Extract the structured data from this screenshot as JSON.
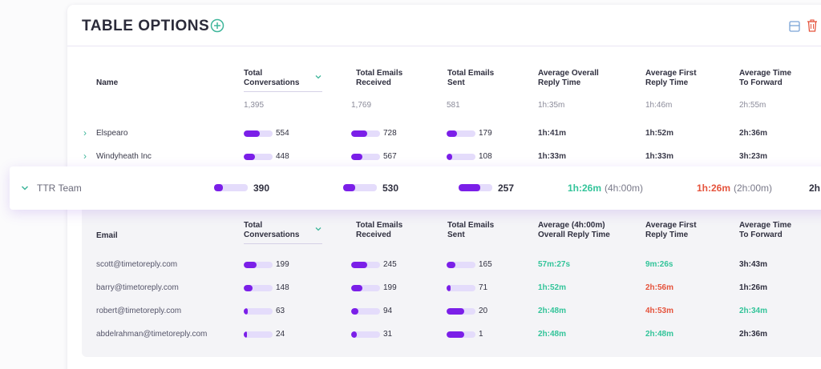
{
  "header": {
    "title": "TABLE OPTIONS",
    "add_icon": "plus-circle-icon",
    "save_icon": "save-icon",
    "delete_icon": "trash-icon"
  },
  "colors": {
    "accent": "#7b1fe8",
    "bar_bg": "#e4dcfb",
    "green": "#33c49a",
    "red": "#e5533c"
  },
  "table": {
    "columns": [
      "Name",
      "Total Conversations",
      "Total Emails Received",
      "Total Emails Sent",
      "Average Overall Reply Time",
      "Average First Reply Time",
      "Average Time To Forward"
    ],
    "col_lines": [
      [
        "Name"
      ],
      [
        "Total",
        "Conversations"
      ],
      [
        "Total Emails",
        "Received"
      ],
      [
        "Total Emails",
        "Sent"
      ],
      [
        "Average Overall",
        "Reply Time"
      ],
      [
        "Average First",
        "Reply Time"
      ],
      [
        "Average Time",
        "To Forward"
      ]
    ],
    "totals": [
      "1,395",
      "1,769",
      "581",
      "1h:35m",
      "1h:46m",
      "2h:55m"
    ],
    "rows": [
      {
        "name": "Elspearo",
        "conv": "554",
        "conv_pct": 0.55,
        "recv": "728",
        "recv_pct": 0.55,
        "sent": "179",
        "sent_pct": 0.35,
        "reply": "1h:41m",
        "first": "1h:52m",
        "fwd": "2h:36m"
      },
      {
        "name": "Windyheath Inc",
        "conv": "448",
        "conv_pct": 0.4,
        "recv": "567",
        "recv_pct": 0.4,
        "sent": "108",
        "sent_pct": 0.2,
        "reply": "1h:33m",
        "first": "1h:33m",
        "fwd": "3h:23m"
      }
    ],
    "team": {
      "name": "TTR Team",
      "conv": "390",
      "conv_pct": 0.25,
      "recv": "530",
      "recv_pct": 0.35,
      "sent": "257",
      "sent_pct": 0.65,
      "reply": "1h:26m",
      "reply_target": "(4h:00m)",
      "first": "1h:26m",
      "first_target": "(2h:00m)",
      "fwd": "2h"
    }
  },
  "subtable": {
    "col_lines": [
      [
        "Email"
      ],
      [
        "Total",
        "Conversations"
      ],
      [
        "Total Emails",
        "Received"
      ],
      [
        "Total Emails",
        "Sent"
      ],
      [
        "Average (4h:00m)",
        "Overall Reply Time"
      ],
      [
        "Average First",
        "Reply Time"
      ],
      [
        "Average Time",
        "To Forward"
      ]
    ],
    "rows": [
      {
        "email": "scott@timetoreply.com",
        "conv": "199",
        "conv_pct": 0.45,
        "recv": "245",
        "recv_pct": 0.55,
        "sent": "165",
        "sent_pct": 0.3,
        "reply": "57m:27s",
        "reply_c": "green",
        "first": "9m:26s",
        "first_c": "green",
        "fwd": "3h:43m",
        "fwd_c": "dark"
      },
      {
        "email": "barry@timetoreply.com",
        "conv": "148",
        "conv_pct": 0.3,
        "recv": "199",
        "recv_pct": 0.4,
        "sent": "71",
        "sent_pct": 0.15,
        "reply": "1h:52m",
        "reply_c": "green",
        "first": "2h:56m",
        "first_c": "red",
        "fwd": "1h:26m",
        "fwd_c": "dark"
      },
      {
        "email": "robert@timetoreply.com",
        "conv": "63",
        "conv_pct": 0.15,
        "recv": "94",
        "recv_pct": 0.25,
        "sent": "20",
        "sent_pct": 0.6,
        "reply": "2h:48m",
        "reply_c": "green",
        "first": "4h:53m",
        "first_c": "red",
        "fwd": "2h:34m",
        "fwd_c": "green"
      },
      {
        "email": "abdelrahman@timetoreply.com",
        "conv": "24",
        "conv_pct": 0.1,
        "recv": "31",
        "recv_pct": 0.2,
        "sent": "1",
        "sent_pct": 0.6,
        "reply": "2h:48m",
        "reply_c": "green",
        "first": "2h:48m",
        "first_c": "green",
        "fwd": "2h:36m",
        "fwd_c": "dark"
      }
    ]
  }
}
